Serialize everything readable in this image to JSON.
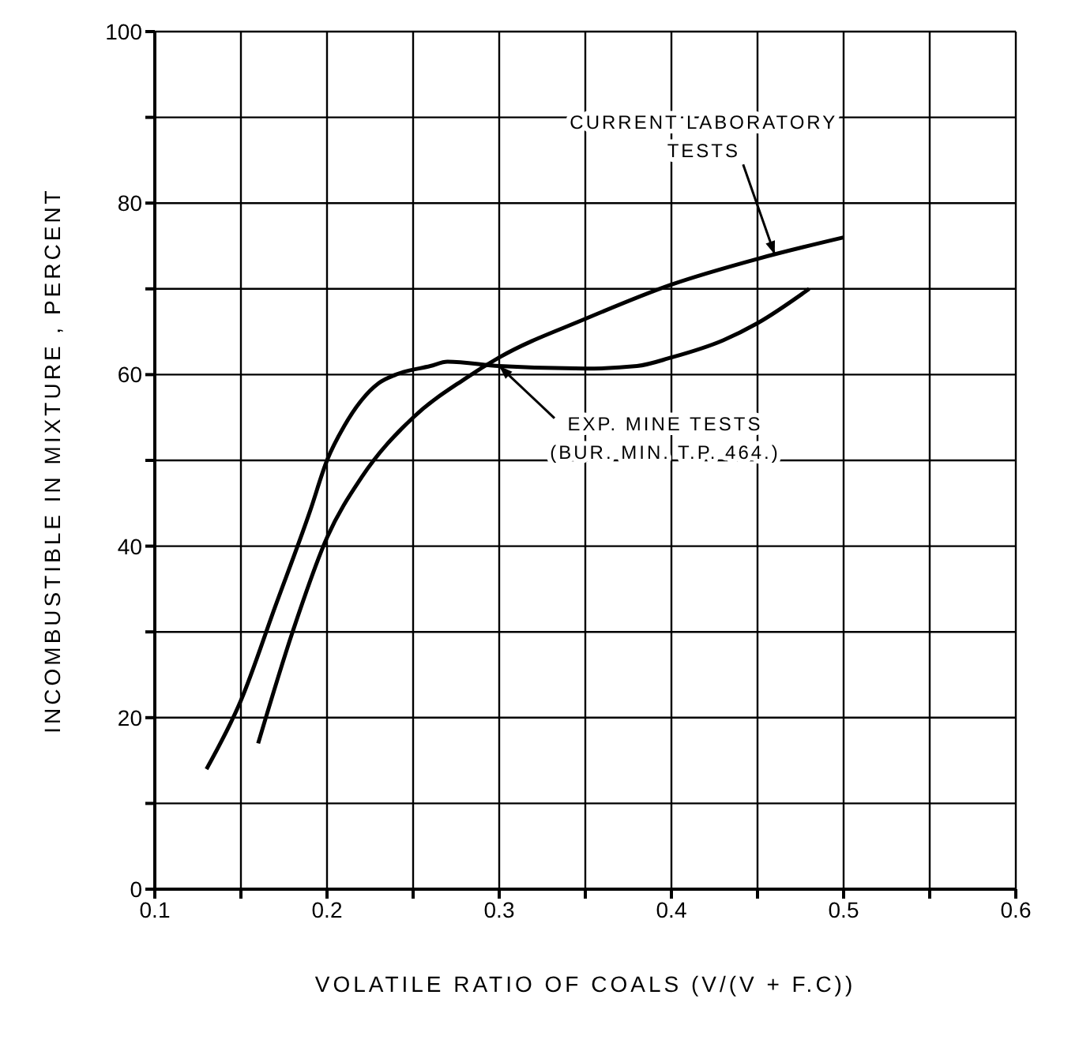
{
  "chart_data": {
    "type": "line",
    "xlabel": "VOLATILE RATIO OF COALS (V/(V + F.C))",
    "ylabel": "INCOMBUSTIBLE IN MIXTURE , PERCENT",
    "series": [
      {
        "color": "#000000",
        "x": [
          0.13,
          0.15,
          0.17,
          0.19,
          0.2,
          0.21,
          0.22,
          0.23,
          0.24,
          0.26,
          0.27,
          0.3,
          0.35,
          0.38,
          0.4,
          0.43,
          0.45,
          0.48
        ],
        "values": [
          14,
          22,
          33,
          44,
          50,
          54,
          57,
          59,
          60,
          61,
          61.5,
          61,
          60.7,
          61,
          62,
          64,
          66,
          70
        ]
      },
      {
        "color": "#000000",
        "x": [
          0.16,
          0.18,
          0.2,
          0.22,
          0.25,
          0.28,
          0.3,
          0.35,
          0.4,
          0.45,
          0.5
        ],
        "values": [
          17,
          30,
          41,
          48,
          55,
          59.5,
          62,
          66.5,
          70.5,
          73.5,
          76
        ]
      }
    ],
    "xlim": [
      0.1,
      0.6
    ],
    "ylim": [
      0,
      100
    ],
    "xticks": [
      0.1,
      {
        "value": 0.15,
        "label": null
      },
      0.2,
      {
        "value": 0.25,
        "label": null
      },
      0.3,
      {
        "value": 0.35,
        "label": null
      },
      0.4,
      {
        "value": 0.45,
        "label": null
      },
      0.5,
      {
        "value": 0.55,
        "label": null
      },
      0.6
    ],
    "yticks": [
      0,
      {
        "value": 10,
        "label": null
      },
      20,
      {
        "value": 30,
        "label": null
      },
      40,
      {
        "value": 50,
        "label": null
      },
      60,
      {
        "value": 70,
        "label": null
      },
      80,
      {
        "value": 90,
        "label": null
      },
      100
    ],
    "grid": true,
    "marker": "none",
    "line_style": "solid",
    "legend": false,
    "annotations": [
      {
        "text": "CURRENT LABORATORY\nTESTS",
        "x": 0.46,
        "y": 74
      },
      {
        "text": "EXP. MINE TESTS\n(BUR. MIN. T.P. 464.)",
        "x": 0.3,
        "y": 61
      }
    ]
  }
}
